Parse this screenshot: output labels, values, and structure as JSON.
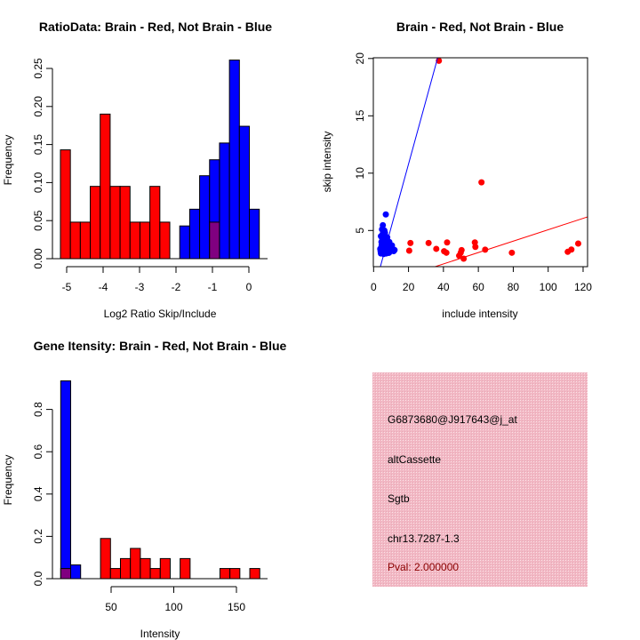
{
  "colors": {
    "red": "#ff0000",
    "blue": "#0000ff",
    "overlap": "#800080",
    "info_bg": "#f4c2cc",
    "pval_text": "#8b0000"
  },
  "chart_data": [
    {
      "type": "bar",
      "title": "RatioData: Brain - Red, Not Brain - Blue",
      "xlabel": "Log2 Ratio Skip/Include",
      "ylabel": "Frequency",
      "bin_start": -5.171,
      "bin_width": 0.2728,
      "xticks": [
        -5,
        -4,
        -3,
        -2,
        -1,
        0
      ],
      "xtick_labels": [
        "-5",
        "-4",
        "-3",
        "-2",
        "-1",
        "0"
      ],
      "yticks": [
        0,
        0.05,
        0.1,
        0.15,
        0.2,
        0.25
      ],
      "ytick_labels": [
        "0.00",
        "0.05",
        "0.10",
        "0.15",
        "0.20",
        "0.25"
      ],
      "ylim": [
        0,
        0.26
      ],
      "series": [
        {
          "name": "Brain",
          "color": "red",
          "values": [
            0.143,
            0.048,
            0.048,
            0.095,
            0.19,
            0.095,
            0.095,
            0.048,
            0.048,
            0.095,
            0.048,
            0,
            0,
            0,
            0,
            0.048,
            0,
            0,
            0,
            0
          ]
        },
        {
          "name": "Not Brain",
          "color": "blue",
          "values": [
            0,
            0,
            0,
            0,
            0,
            0,
            0,
            0,
            0,
            0,
            0,
            0,
            0.043,
            0.065,
            0.109,
            0.13,
            0.152,
            0.261,
            0.174,
            0.065
          ]
        }
      ]
    },
    {
      "type": "scatter",
      "title": "Brain - Red, Not Brain - Blue",
      "xlabel": "include intensity",
      "ylabel": "skip intensity",
      "xlim": [
        0,
        122.7
      ],
      "ylim": [
        1.85,
        20.05
      ],
      "xticks": [
        0,
        20,
        40,
        60,
        80,
        100,
        120
      ],
      "xtick_labels": [
        "0",
        "20",
        "40",
        "60",
        "80",
        "100",
        "120"
      ],
      "yticks": [
        5,
        10,
        15,
        20
      ],
      "ytick_labels": [
        "5",
        "10",
        "15",
        "20"
      ],
      "lines": [
        {
          "name": "blue-fit",
          "color": "blue",
          "intercept": -0.31,
          "slope": 0.555
        },
        {
          "name": "red-fit",
          "color": "red",
          "intercept": 0.095,
          "slope": 0.0497
        }
      ],
      "series": [
        {
          "name": "Brain",
          "color": "red",
          "points": [
            [
              37.4,
              19.8
            ],
            [
              61.8,
              9.2
            ],
            [
              21.1,
              3.91
            ],
            [
              20.4,
              3.24
            ],
            [
              31.5,
              3.91
            ],
            [
              35.9,
              3.4
            ],
            [
              40.4,
              3.19
            ],
            [
              41.7,
              3.06
            ],
            [
              42.1,
              3.96
            ],
            [
              49.0,
              2.8
            ],
            [
              49.9,
              3.06
            ],
            [
              50.4,
              3.29
            ],
            [
              51.6,
              2.54
            ],
            [
              58.0,
              3.96
            ],
            [
              58.3,
              3.57
            ],
            [
              63.9,
              3.33
            ],
            [
              79.2,
              3.06
            ],
            [
              111.2,
              3.14
            ],
            [
              113.3,
              3.34
            ],
            [
              117.2,
              3.86
            ]
          ]
        },
        {
          "name": "Not Brain",
          "color": "blue",
          "points": [
            [
              4,
              3.2
            ],
            [
              4.5,
              3.5
            ],
            [
              5,
              3.8
            ],
            [
              5.5,
              4.2
            ],
            [
              6,
              4.6
            ],
            [
              6.5,
              4.8
            ],
            [
              4.2,
              4.5
            ],
            [
              4.8,
              5.1
            ],
            [
              5.3,
              5.46
            ],
            [
              7,
              6.4
            ],
            [
              5,
              3.0
            ],
            [
              6,
              3.1
            ],
            [
              7,
              3.2
            ],
            [
              8,
              3.3
            ],
            [
              9,
              3.4
            ],
            [
              10,
              3.3
            ],
            [
              11,
              3.4
            ],
            [
              12,
              3.3
            ],
            [
              6,
              3.6
            ],
            [
              7,
              3.7
            ],
            [
              8,
              3.8
            ],
            [
              9,
              3.6
            ],
            [
              10,
              3.5
            ],
            [
              5.5,
              3.3
            ],
            [
              6.5,
              3.4
            ],
            [
              7.5,
              3.5
            ],
            [
              8.5,
              3.9
            ],
            [
              9.5,
              3.2
            ],
            [
              4.5,
              4.0
            ],
            [
              5,
              4.3
            ],
            [
              6,
              4.0
            ],
            [
              7,
              4.2
            ],
            [
              8,
              4.1
            ],
            [
              3.8,
              3.4
            ],
            [
              4.2,
              3.0
            ],
            [
              5.8,
              2.95
            ],
            [
              7.2,
              3.0
            ],
            [
              8.8,
              3.05
            ],
            [
              6.8,
              4.5
            ],
            [
              7.8,
              4.4
            ],
            [
              5.2,
              4.7
            ],
            [
              6.2,
              5.0
            ],
            [
              9,
              4.0
            ],
            [
              10.5,
              3.7
            ],
            [
              11.5,
              3.2
            ],
            [
              4.6,
              3.7
            ]
          ]
        }
      ]
    },
    {
      "type": "bar",
      "title": "Gene Itensity: Brain - Red, Not Brain - Blue",
      "xlabel": "Intensity",
      "ylabel": "Frequency",
      "bin_start": 9.8,
      "bin_width": 7.94,
      "xticks": [
        50,
        100,
        150
      ],
      "xtick_labels": [
        "50",
        "100",
        "150"
      ],
      "yticks": [
        0,
        0.2,
        0.4,
        0.6,
        0.8
      ],
      "ytick_labels": [
        "0.0",
        "0.2",
        "0.4",
        "0.6",
        "0.8"
      ],
      "ylim": [
        0,
        0.95
      ],
      "series": [
        {
          "name": "Brain",
          "color": "red",
          "values": [
            0.048,
            0,
            0,
            0,
            0.19,
            0.048,
            0.095,
            0.143,
            0.095,
            0.048,
            0.095,
            0,
            0.095,
            0,
            0,
            0,
            0.048,
            0.048,
            0,
            0.048
          ]
        },
        {
          "name": "Not Brain",
          "color": "blue",
          "values": [
            0.935,
            0.065,
            0,
            0,
            0,
            0,
            0,
            0,
            0,
            0,
            0,
            0,
            0,
            0,
            0,
            0,
            0,
            0,
            0,
            0
          ]
        }
      ]
    }
  ],
  "info": {
    "probe_id": "G6873680@J917643@j_at",
    "event_type": "altCassette",
    "gene": "Sgtb",
    "location": "chr13.7287-1.3",
    "pval": "Pval: 2.000000"
  }
}
